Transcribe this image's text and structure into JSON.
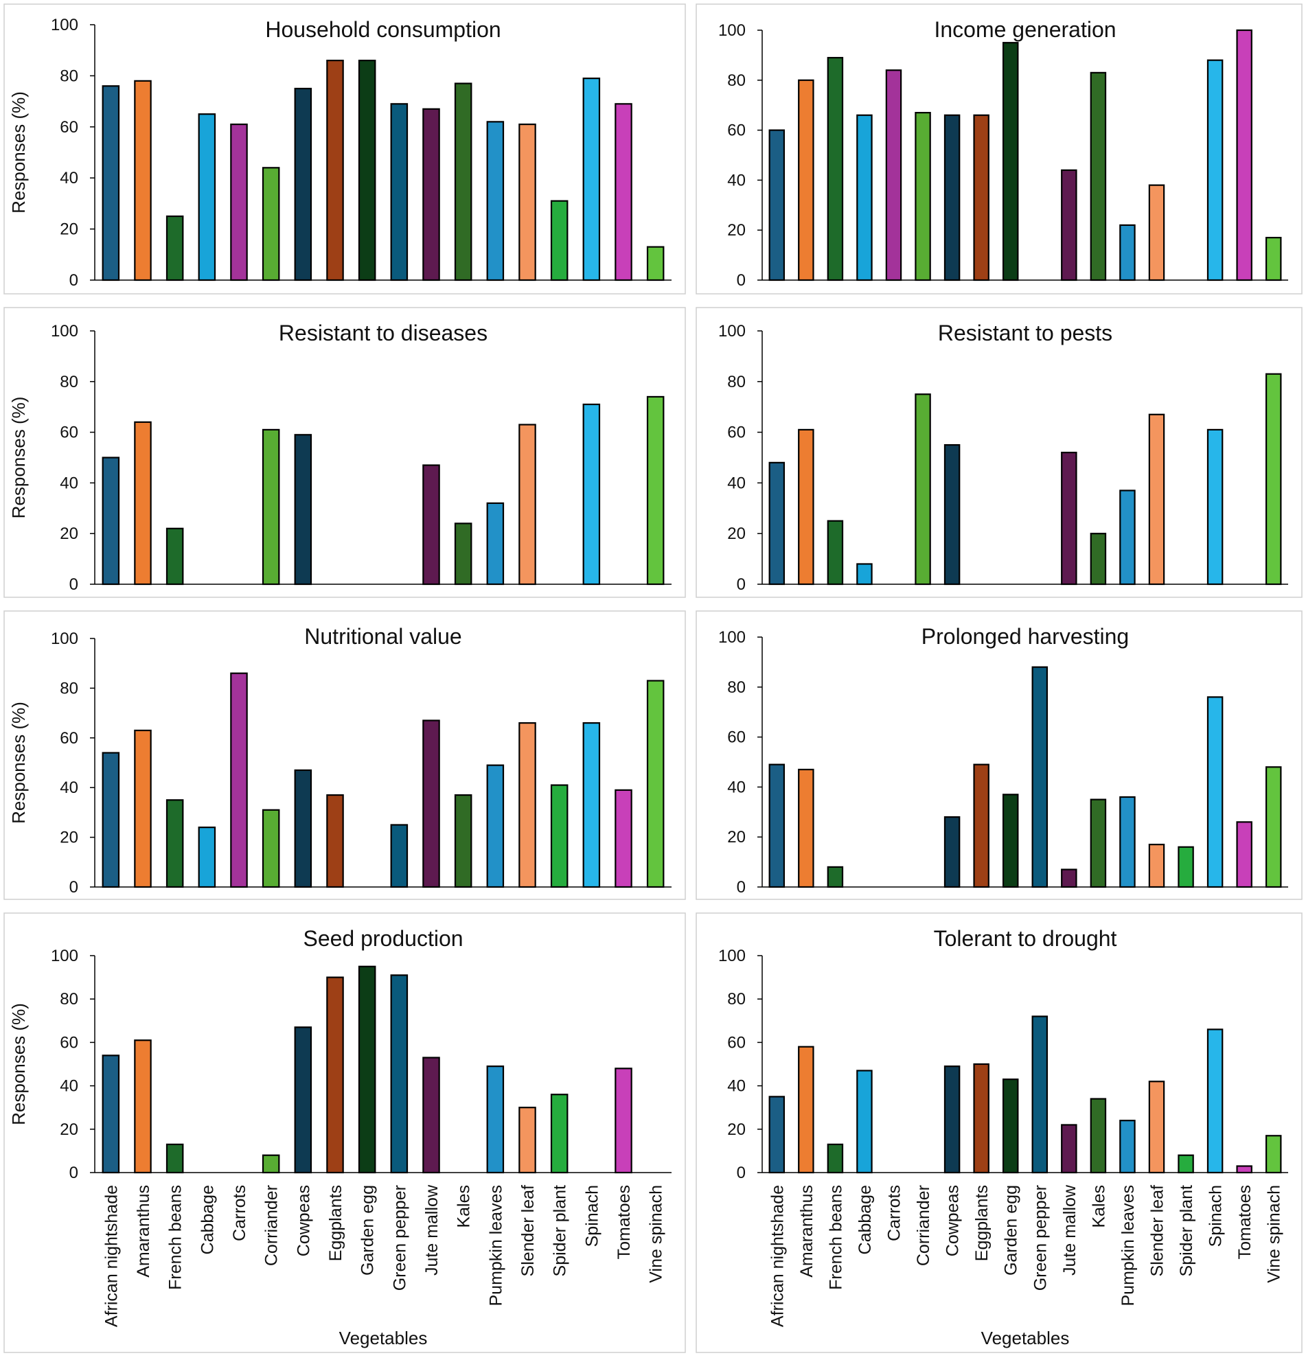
{
  "shared": {
    "categories": [
      "African nightshade",
      "Amaranthus",
      "French beans",
      "Cabbage",
      "Carrots",
      "Corriander",
      "Cowpeas",
      "Eggplants",
      "Garden egg",
      "Green pepper",
      "Jute mallow",
      "Kales",
      "Pumpkin leaves",
      "Slender leaf",
      "Spider plant",
      "Spinach",
      "Tomatoes",
      "Vine spinach"
    ],
    "colors": [
      "#1b5e85",
      "#ed7d31",
      "#1e6b2a",
      "#18a4d9",
      "#a3339a",
      "#58ad33",
      "#0e3a52",
      "#9e4016",
      "#0c3d16",
      "#0a5a7c",
      "#5e1a50",
      "#306b25",
      "#2291c8",
      "#f4955e",
      "#26ac3e",
      "#27b6ea",
      "#c840b9",
      "#63c43e"
    ]
  },
  "chart_data": [
    {
      "type": "bar",
      "title": "Household  consumption",
      "xlabel": "",
      "ylabel": "Responses (%)",
      "ylim": [
        0,
        100
      ],
      "yticks": [
        0,
        20,
        40,
        60,
        80,
        100
      ],
      "values": [
        76,
        78,
        25,
        65,
        61,
        44,
        75,
        86,
        86,
        69,
        67,
        77,
        62,
        61,
        31,
        79,
        69,
        13
      ]
    },
    {
      "type": "bar",
      "title": "Income generation",
      "xlabel": "",
      "ylabel": "",
      "ylim": [
        0,
        100
      ],
      "yticks": [
        0,
        20,
        40,
        60,
        80,
        100
      ],
      "values": [
        60,
        80,
        89,
        66,
        84,
        67,
        66,
        66,
        95,
        0,
        44,
        83,
        22,
        38,
        0,
        88,
        100,
        17
      ]
    },
    {
      "type": "bar",
      "title": "Resistant to diseases",
      "xlabel": "",
      "ylabel": "Responses (%)",
      "ylim": [
        0,
        100
      ],
      "yticks": [
        0,
        20,
        40,
        60,
        80,
        100
      ],
      "values": [
        50,
        64,
        22,
        0,
        0,
        61,
        59,
        0,
        0,
        0,
        47,
        24,
        32,
        63,
        0,
        71,
        0,
        74
      ]
    },
    {
      "type": "bar",
      "title": "Resistant to pests",
      "xlabel": "",
      "ylabel": "",
      "ylim": [
        0,
        100
      ],
      "yticks": [
        0,
        20,
        40,
        60,
        80,
        100
      ],
      "values": [
        48,
        61,
        25,
        8,
        0,
        75,
        55,
        0,
        0,
        0,
        52,
        20,
        37,
        67,
        0,
        61,
        0,
        83
      ]
    },
    {
      "type": "bar",
      "title": "Nutritional value",
      "xlabel": "",
      "ylabel": "Responses (%)",
      "ylim": [
        0,
        100
      ],
      "yticks": [
        0,
        20,
        40,
        60,
        80,
        100
      ],
      "values": [
        54,
        63,
        35,
        24,
        86,
        31,
        47,
        37,
        0,
        25,
        67,
        37,
        49,
        66,
        41,
        66,
        39,
        83
      ]
    },
    {
      "type": "bar",
      "title": "Prolonged harvesting",
      "xlabel": "",
      "ylabel": "",
      "ylim": [
        0,
        100
      ],
      "yticks": [
        0,
        20,
        40,
        60,
        80,
        100
      ],
      "values": [
        49,
        47,
        8,
        0,
        0,
        0,
        28,
        49,
        37,
        88,
        7,
        35,
        36,
        17,
        16,
        76,
        26,
        48
      ]
    },
    {
      "type": "bar",
      "title": "Seed production",
      "xlabel": "Vegetables",
      "ylabel": "Responses (%)",
      "ylim": [
        0,
        100
      ],
      "yticks": [
        0,
        20,
        40,
        60,
        80,
        100
      ],
      "values": [
        54,
        61,
        13,
        0,
        0,
        8,
        67,
        90,
        95,
        91,
        53,
        0,
        49,
        30,
        36,
        0,
        48,
        0
      ]
    },
    {
      "type": "bar",
      "title": "Tolerant to drought",
      "xlabel": "Vegetables",
      "ylabel": "",
      "ylim": [
        0,
        100
      ],
      "yticks": [
        0,
        20,
        40,
        60,
        80,
        100
      ],
      "values": [
        35,
        58,
        13,
        47,
        0,
        0,
        49,
        50,
        43,
        72,
        22,
        34,
        24,
        42,
        8,
        66,
        3,
        17
      ]
    }
  ]
}
